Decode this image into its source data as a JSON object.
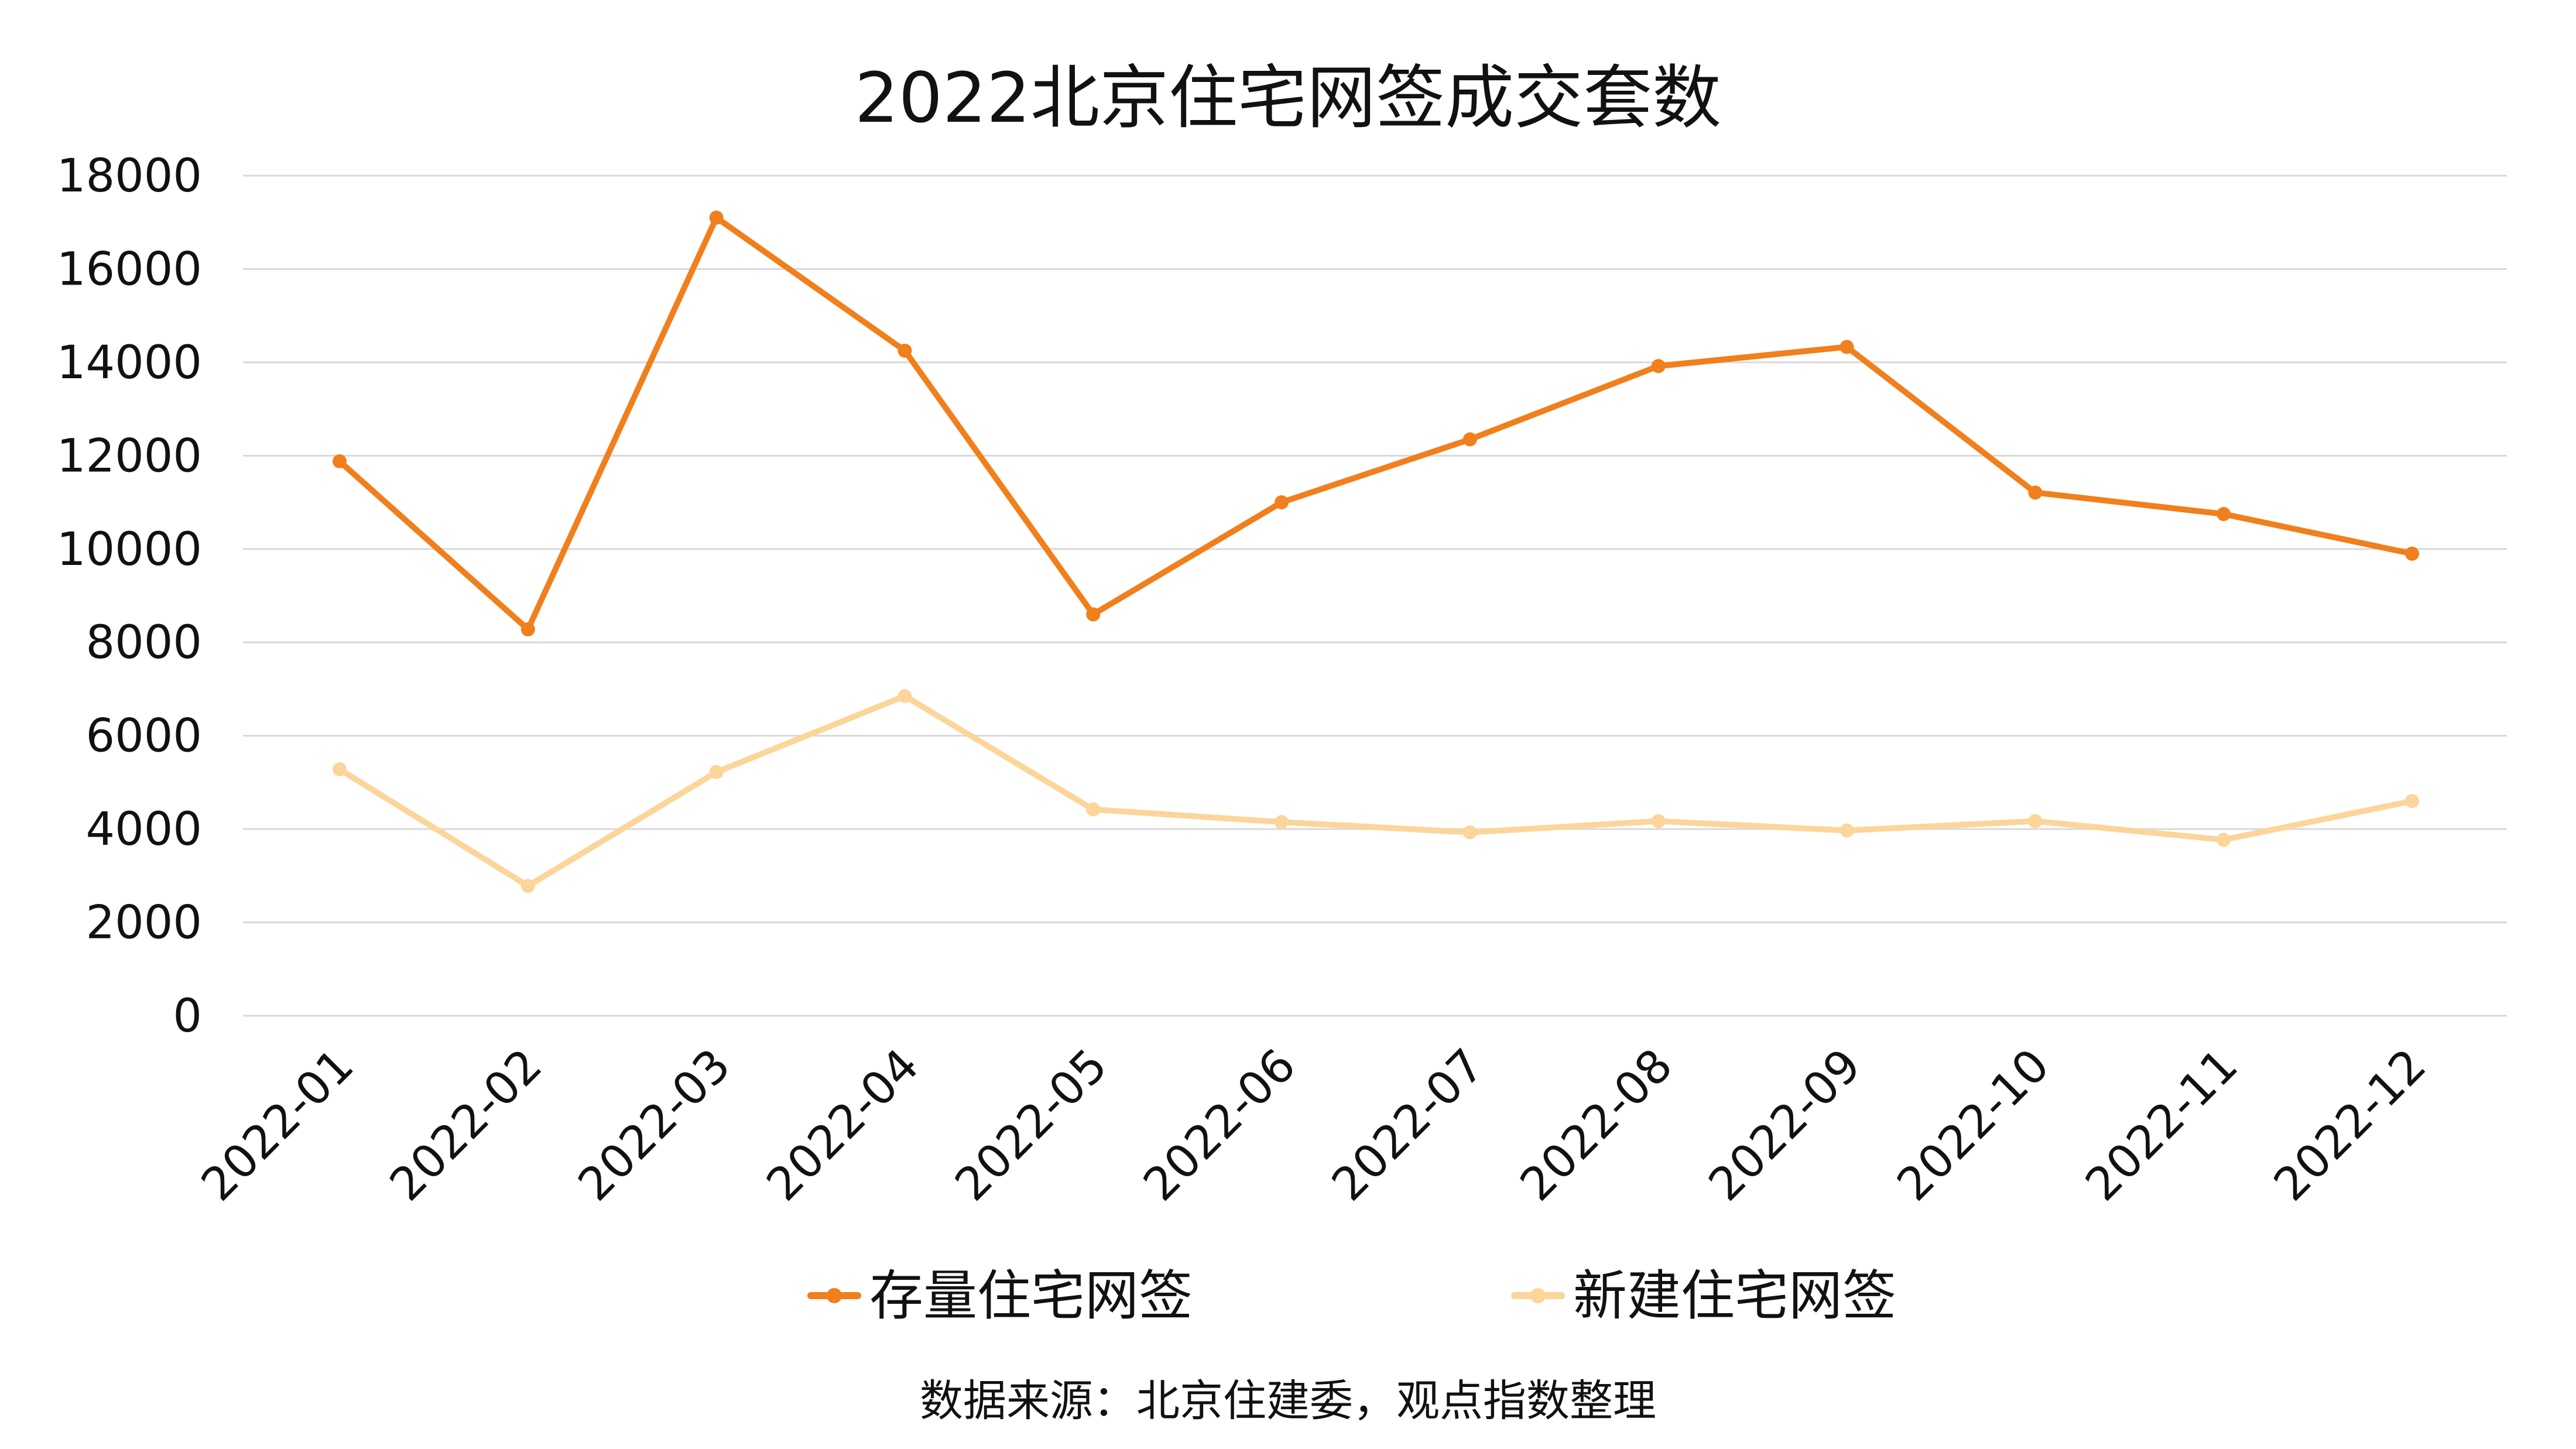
{
  "chart_data": {
    "type": "line",
    "title": "2022北京住宅网签成交套数",
    "categories": [
      "2022-01",
      "2022-02",
      "2022-03",
      "2022-04",
      "2022-05",
      "2022-06",
      "2022-07",
      "2022-08",
      "2022-09",
      "2022-10",
      "2022-11",
      "2022-12"
    ],
    "series": [
      {
        "name": "存量住宅网签",
        "color": "#F07F1C",
        "values": [
          11880,
          8280,
          17100,
          14250,
          8600,
          11000,
          12350,
          13920,
          14330,
          11210,
          10750,
          9900
        ]
      },
      {
        "name": "新建住宅网签",
        "color": "#FCD59A",
        "values": [
          5280,
          2780,
          5220,
          6850,
          4420,
          4150,
          3930,
          4170,
          3970,
          4170,
          3770,
          4600
        ]
      }
    ],
    "ylim": [
      0,
      18000
    ],
    "yticks": [
      "0",
      "2000",
      "4000",
      "6000",
      "8000",
      "10000",
      "12000",
      "14000",
      "16000",
      "18000"
    ],
    "grid": true,
    "legend": "bottom",
    "source": "数据来源：北京住建委，观点指数整理"
  }
}
